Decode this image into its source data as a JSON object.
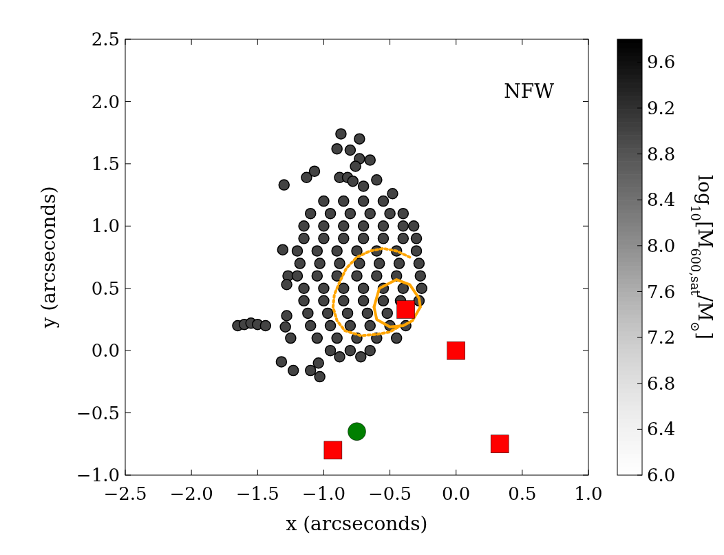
{
  "chart_data": {
    "type": "scatter",
    "xlabel": "x (arcseconds)",
    "ylabel": "y (arcseconds)",
    "clabel": "log$_{10}$[M$_{600,sat}$/M$_{⊙}$]",
    "annotations": [
      "NFW"
    ],
    "xlim": [
      -2.5,
      1.0
    ],
    "ylim": [
      -1.0,
      2.5
    ],
    "xticks": [
      {
        "value": -2.5,
        "label": "−2.5"
      },
      {
        "value": -2.0,
        "label": "−2.0"
      },
      {
        "value": -1.5,
        "label": "−1.5"
      },
      {
        "value": -1.0,
        "label": "−1.0"
      },
      {
        "value": -0.5,
        "label": "−0.5"
      },
      {
        "value": 0,
        "label": "0.0"
      },
      {
        "value": 0.5,
        "label": "0.5"
      },
      {
        "value": 1.0,
        "label": "1.0"
      }
    ],
    "yticks": [
      {
        "value": -1.0,
        "label": "−1.0"
      },
      {
        "value": -0.5,
        "label": "−0.5"
      },
      {
        "value": 0,
        "label": "0.0"
      },
      {
        "value": 0.5,
        "label": "0.5"
      },
      {
        "value": 1.0,
        "label": "1.0"
      },
      {
        "value": 1.5,
        "label": "1.5"
      },
      {
        "value": 2.0,
        "label": "2.0"
      },
      {
        "value": 2.5,
        "label": "2.5"
      }
    ],
    "clim": [
      6.0,
      9.8
    ],
    "cticks": [
      {
        "value": 6.0,
        "label": "6.0"
      },
      {
        "value": 6.4,
        "label": "6.4"
      },
      {
        "value": 6.8,
        "label": "6.8"
      },
      {
        "value": 7.2,
        "label": "7.2"
      },
      {
        "value": 7.6,
        "label": "7.6"
      },
      {
        "value": 8.0,
        "label": "8.0"
      },
      {
        "value": 8.4,
        "label": "8.4"
      },
      {
        "value": 8.8,
        "label": "8.8"
      },
      {
        "value": 9.2,
        "label": "9.2"
      },
      {
        "value": 9.6,
        "label": "9.6"
      }
    ],
    "grid": false,
    "series": [
      {
        "marker": "circle",
        "x": [
          -0.87,
          -0.73,
          -0.9,
          -0.8,
          -0.73,
          -0.65,
          -0.76,
          -1.13,
          -1.07,
          -0.88,
          -0.82,
          -0.78,
          -0.7,
          -0.6,
          -1.3,
          -0.48,
          -1.31,
          -1.27,
          -1.28,
          -1.65,
          -1.6,
          -1.55,
          -1.5,
          -1.44,
          -1.32,
          -1.23,
          -1.1,
          -1.04,
          -1.03,
          -1.28,
          -1.29,
          -1.25,
          -1.0,
          -0.85,
          -0.7,
          -0.55,
          -1.1,
          -0.95,
          -0.8,
          -0.65,
          -0.5,
          -0.4,
          -1.15,
          -1.0,
          -0.85,
          -0.7,
          -0.55,
          -0.4,
          -0.32,
          -1.15,
          -1.0,
          -0.85,
          -0.7,
          -0.55,
          -0.4,
          -0.3,
          -1.2,
          -1.05,
          -0.9,
          -0.75,
          -0.6,
          -0.45,
          -0.3,
          -1.18,
          -1.03,
          -0.88,
          -0.73,
          -0.58,
          -0.43,
          -0.28,
          -1.2,
          -1.05,
          -0.9,
          -0.75,
          -0.6,
          -0.45,
          -0.27,
          -1.15,
          -1.0,
          -0.85,
          -0.7,
          -0.55,
          -0.4,
          -0.26,
          -1.15,
          -1.0,
          -0.85,
          -0.7,
          -0.55,
          -0.42,
          -0.28,
          -1.12,
          -0.97,
          -0.82,
          -0.67,
          -0.52,
          -1.1,
          -0.95,
          -0.8,
          -0.65,
          -0.5,
          -0.38,
          -1.05,
          -0.9,
          -0.75,
          -0.6,
          -0.45,
          -0.95,
          -0.8,
          -0.65,
          -0.88,
          -0.72
        ],
        "values": [
          1.74,
          1.7,
          1.62,
          1.61,
          1.54,
          1.53,
          1.48,
          1.39,
          1.44,
          1.39,
          1.39,
          1.36,
          1.32,
          1.37,
          1.33,
          1.26,
          0.81,
          0.6,
          0.53,
          0.2,
          0.21,
          0.22,
          0.21,
          0.2,
          -0.09,
          -0.16,
          -0.16,
          -0.1,
          -0.21,
          0.28,
          0.19,
          0.1,
          1.2,
          1.2,
          1.2,
          1.2,
          1.1,
          1.1,
          1.1,
          1.1,
          1.1,
          1.1,
          1.0,
          1.0,
          1.0,
          1.0,
          1.0,
          1.0,
          1.0,
          0.9,
          0.9,
          0.9,
          0.9,
          0.9,
          0.9,
          0.9,
          0.8,
          0.8,
          0.8,
          0.8,
          0.8,
          0.8,
          0.8,
          0.7,
          0.7,
          0.7,
          0.7,
          0.7,
          0.7,
          0.7,
          0.6,
          0.6,
          0.6,
          0.6,
          0.6,
          0.6,
          0.6,
          0.5,
          0.5,
          0.5,
          0.5,
          0.5,
          0.5,
          0.5,
          0.4,
          0.4,
          0.4,
          0.4,
          0.4,
          0.4,
          0.4,
          0.3,
          0.3,
          0.3,
          0.3,
          0.3,
          0.2,
          0.2,
          0.2,
          0.2,
          0.2,
          0.2,
          0.1,
          0.1,
          0.1,
          0.1,
          0.1,
          0.0,
          0.0,
          0.0,
          -0.05,
          -0.05
        ],
        "cvalues": [
          9.0,
          9.0,
          9.0,
          9.0,
          9.0,
          9.0,
          9.0,
          9.0,
          9.0,
          9.0,
          9.0,
          9.0,
          9.0,
          9.0,
          9.0,
          9.0,
          9.0,
          9.0,
          9.0,
          9.0,
          9.0,
          9.0,
          9.0,
          9.0,
          9.0,
          9.0,
          9.0,
          9.0,
          9.0,
          9.0,
          9.0,
          9.0,
          9.0,
          9.0,
          9.0,
          9.0,
          9.0,
          9.0,
          9.0,
          9.0,
          9.0,
          9.0,
          9.0,
          9.0,
          9.0,
          9.0,
          9.0,
          9.0,
          9.0,
          9.0,
          9.0,
          9.0,
          9.0,
          9.0,
          9.0,
          9.0,
          9.0,
          9.0,
          9.0,
          9.0,
          9.0,
          9.0,
          9.0,
          9.0,
          9.0,
          9.0,
          9.0,
          9.0,
          9.0,
          9.0,
          9.0,
          9.0,
          9.0,
          9.0,
          9.0,
          9.0,
          9.0,
          9.0,
          9.0,
          9.0,
          9.0,
          9.0,
          9.0,
          9.0,
          9.0,
          9.0,
          9.0,
          9.0,
          9.0,
          9.0,
          9.0,
          9.0,
          9.0,
          9.0,
          9.0,
          9.0,
          9.0,
          9.0,
          9.0,
          9.0,
          9.0,
          9.0,
          9.0,
          9.0,
          9.0,
          9.0,
          9.0,
          9.0,
          9.0,
          9.0,
          9.0,
          9.0
        ]
      },
      {
        "type": "line",
        "color": "#ffa500",
        "line_style": "dotted",
        "x": [
          -0.35,
          -0.45,
          -0.55,
          -0.65,
          -0.75,
          -0.83,
          -0.88,
          -0.92,
          -0.93,
          -0.9,
          -0.84,
          -0.72,
          -0.6,
          -0.5,
          -0.42
        ],
        "values": [
          0.75,
          0.8,
          0.82,
          0.8,
          0.75,
          0.66,
          0.55,
          0.45,
          0.35,
          0.24,
          0.16,
          0.12,
          0.13,
          0.15,
          0.2
        ]
      },
      {
        "type": "line",
        "color": "#ffa500",
        "line_style": "solid",
        "x": [
          -0.62,
          -0.58,
          -0.45,
          -0.35,
          -0.28,
          -0.27
        ],
        "values": [
          0.35,
          0.5,
          0.57,
          0.53,
          0.42,
          0.35
        ]
      },
      {
        "type": "line",
        "color": "#ffa500",
        "line_style": "solid",
        "x": [
          -0.62,
          -0.6,
          -0.5,
          -0.4,
          -0.33,
          -0.27
        ],
        "values": [
          0.35,
          0.25,
          0.19,
          0.2,
          0.24,
          0.35
        ]
      },
      {
        "type": "scatter",
        "marker": "square",
        "color": "#ff0000",
        "x": [
          -0.38,
          0.0,
          0.33,
          -0.93
        ],
        "values": [
          0.33,
          0.0,
          -0.75,
          -0.8
        ]
      },
      {
        "type": "scatter",
        "marker": "circle",
        "color": "#007f00",
        "x": [
          -0.75
        ],
        "values": [
          -0.65
        ]
      }
    ]
  }
}
